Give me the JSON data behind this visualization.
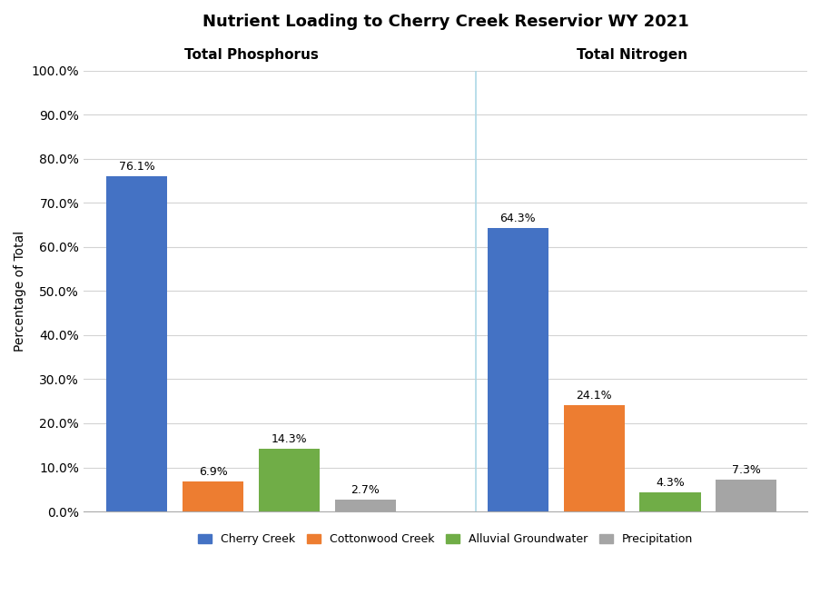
{
  "title": "Nutrient Loading to Cherry Creek Reservior WY 2021",
  "title_fontsize": 13,
  "title_fontweight": "bold",
  "ylabel": "Percentage of Total",
  "ylabel_fontsize": 10,
  "left_group_label": "Total Phosphorus",
  "right_group_label": "Total Nitrogen",
  "group_label_fontsize": 11,
  "group_label_fontweight": "bold",
  "ylim": [
    0,
    100
  ],
  "yticks": [
    0,
    10,
    20,
    30,
    40,
    50,
    60,
    70,
    80,
    90,
    100
  ],
  "ytick_labels": [
    "0.0%",
    "10.0%",
    "20.0%",
    "30.0%",
    "40.0%",
    "50.0%",
    "60.0%",
    "70.0%",
    "80.0%",
    "90.0%",
    "100.0%"
  ],
  "categories": [
    "Cherry Creek",
    "Cottonwood Creek",
    "Alluvial Groundwater",
    "Precipitation"
  ],
  "colors": [
    "#4472C4",
    "#ED7D31",
    "#70AD47",
    "#A5A5A5"
  ],
  "phosphorus_values": [
    76.1,
    6.9,
    14.3,
    2.7
  ],
  "nitrogen_values": [
    64.3,
    24.1,
    4.3,
    7.3
  ],
  "bar_width": 0.8,
  "annotation_fontsize": 9,
  "legend_fontsize": 9,
  "divider_color": "#ADD8E6",
  "background_color": "#FFFFFF",
  "grid_color": "#D3D3D3"
}
